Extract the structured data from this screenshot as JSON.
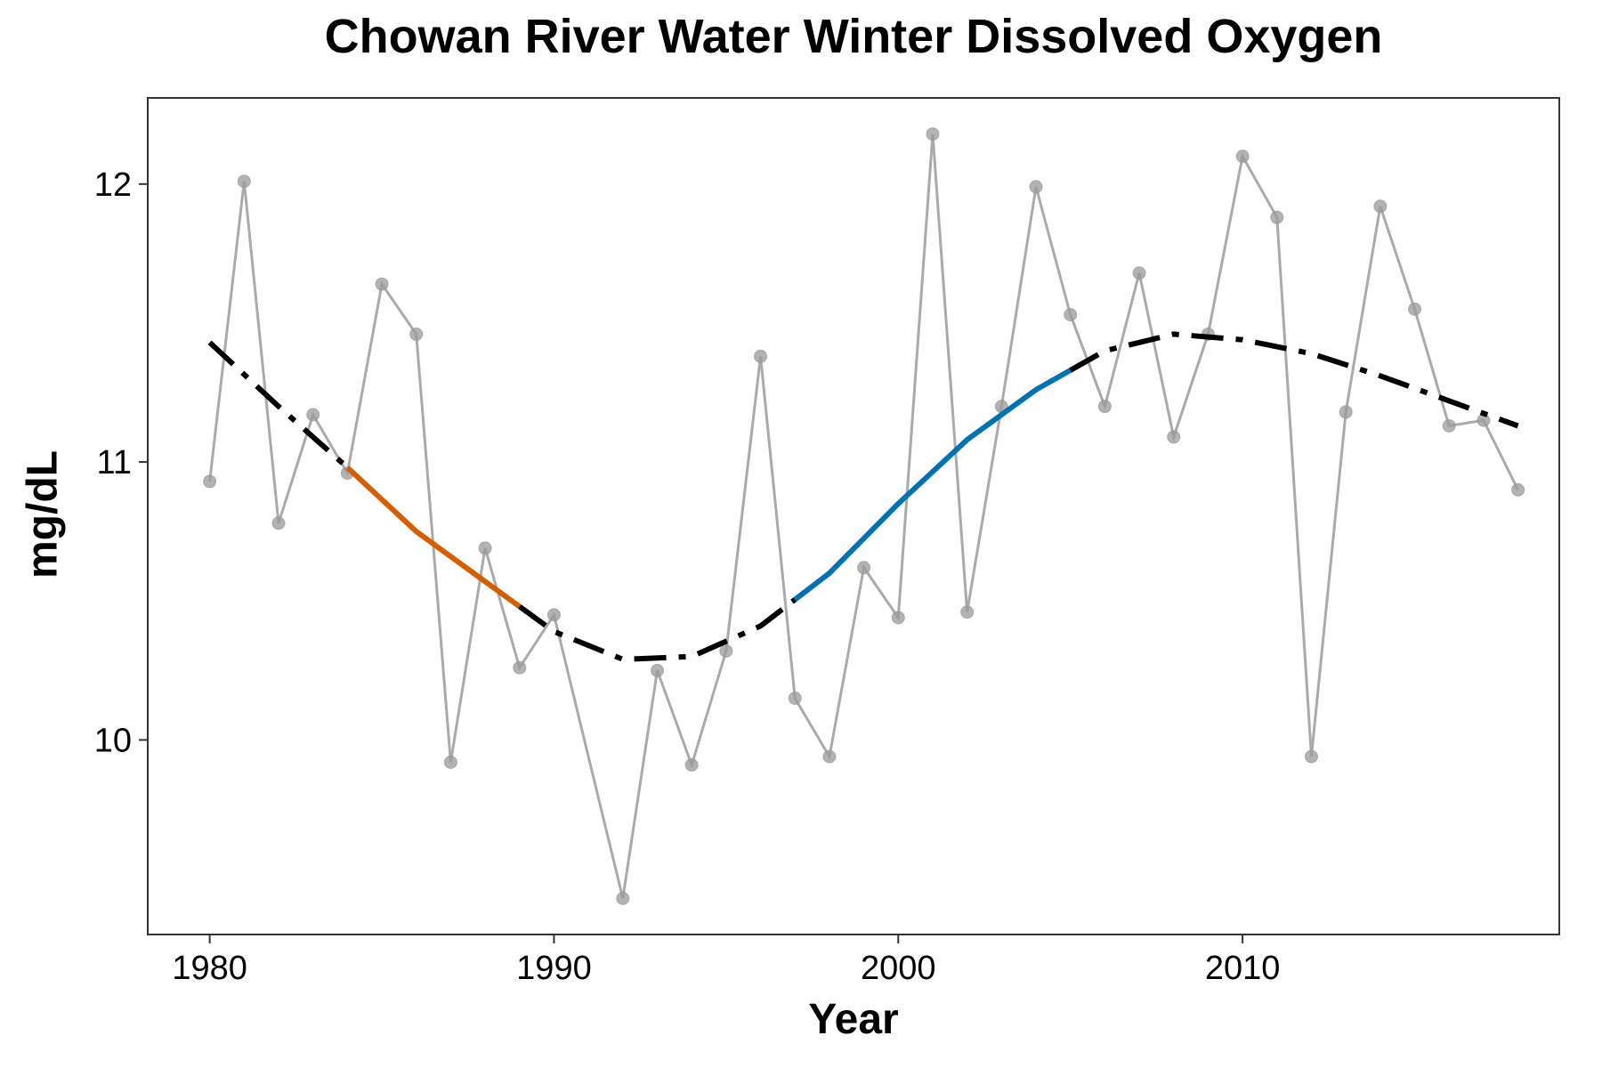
{
  "chart_data": {
    "type": "line",
    "title": "Chowan River Water Winter Dissolved Oxygen",
    "xlabel": "Year",
    "ylabel": "mg/dL",
    "xlim": [
      1978.2,
      2019.2
    ],
    "ylim": [
      9.3,
      12.31
    ],
    "x_ticks": [
      1980,
      1990,
      2000,
      2010
    ],
    "y_ticks": [
      10,
      11,
      12
    ],
    "grid": false,
    "colors": {
      "observed": "#aaaaaa",
      "trend": "#000000",
      "decreasing": "#D55E00",
      "increasing": "#0072B2"
    },
    "series": [
      {
        "style": "observed",
        "x": [
          1980,
          1981,
          1982,
          1983,
          1984,
          1985,
          1986,
          1987,
          1988,
          1989,
          1990,
          1992,
          1993,
          1994,
          1995,
          1996,
          1997,
          1998,
          1999,
          2000,
          2001,
          2002,
          2003,
          2004,
          2005,
          2006,
          2007,
          2008,
          2009,
          2010,
          2011,
          2012,
          2013,
          2014,
          2015,
          2016,
          2017,
          2018
        ],
        "values": [
          10.93,
          12.01,
          10.78,
          11.17,
          10.96,
          11.64,
          11.46,
          9.92,
          10.69,
          10.26,
          10.45,
          9.43,
          10.25,
          9.91,
          10.32,
          11.38,
          10.15,
          9.94,
          10.62,
          10.44,
          12.18,
          10.46,
          11.2,
          11.99,
          11.53,
          11.2,
          11.68,
          11.09,
          11.46,
          12.1,
          11.88,
          9.94,
          11.18,
          11.92,
          11.55,
          11.13,
          11.15,
          10.9
        ]
      },
      {
        "style": "trend",
        "x": [
          1980,
          1982,
          1984,
          1986,
          1988,
          1990,
          1992,
          1994,
          1996,
          1998,
          2000,
          2002,
          2004,
          2006,
          2008,
          2010,
          2012,
          2014,
          2016,
          2018
        ],
        "values": [
          11.43,
          11.2,
          10.98,
          10.75,
          10.57,
          10.39,
          10.29,
          10.3,
          10.41,
          10.6,
          10.85,
          11.08,
          11.26,
          11.4,
          11.46,
          11.44,
          11.39,
          11.31,
          11.22,
          11.13
        ]
      }
    ],
    "highlight_segments": [
      {
        "style": "decreasing",
        "x_range": [
          1984,
          1989
        ]
      },
      {
        "style": "increasing",
        "x_range": [
          1997,
          2005
        ]
      }
    ]
  }
}
